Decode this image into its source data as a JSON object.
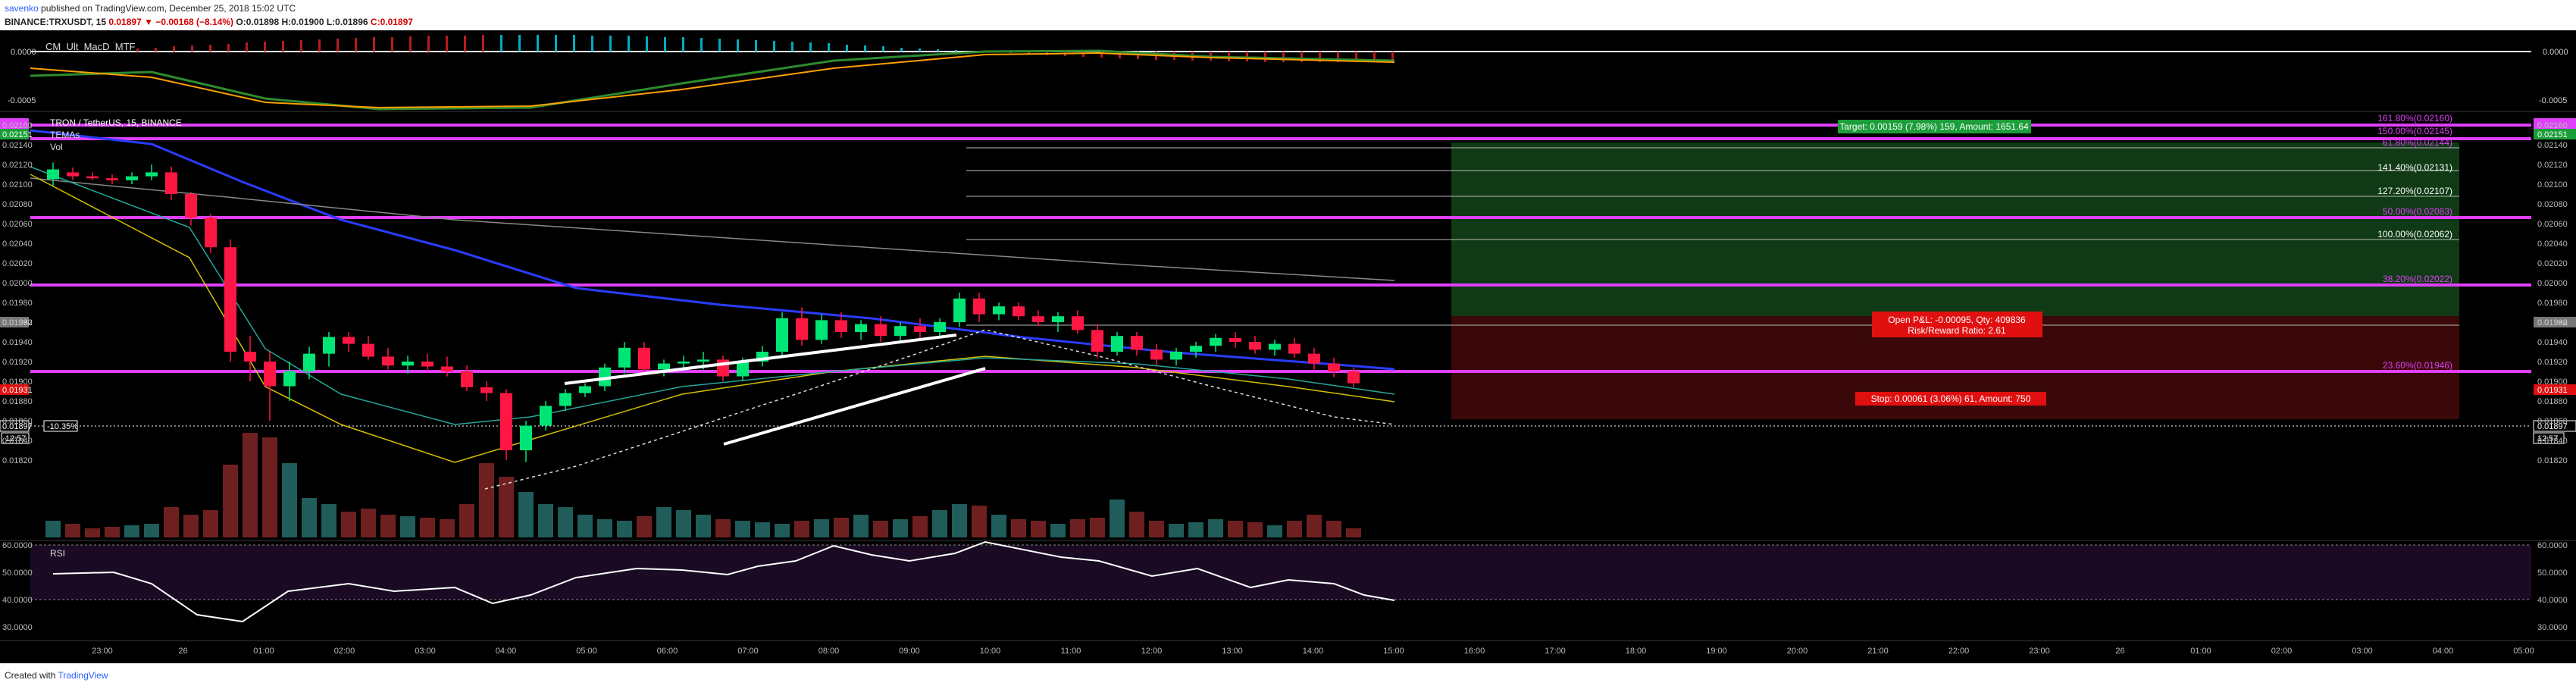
{
  "header": {
    "author": "savenko",
    "published": "published on TradingView.com, December 25, 2018 15:02 UTC",
    "symbol_line": "BINANCE:TRXUSDT, 15",
    "last": "0.01897",
    "change": "▼ −0.00168 (−8.14%)",
    "o": "O:0.01898",
    "h": "H:0.01900",
    "l": "L:0.01896",
    "c": "C:0.01897"
  },
  "macd_pane": {
    "title": "CM_Ult_MacD_MTF",
    "right_top": "0.0000",
    "right_bottom": "-0.0005",
    "left_top": "0.0000",
    "left_bottom": "-0.0005"
  },
  "main_pane": {
    "title": "TRON / TetherUS, 15, BINANCE",
    "indicators": [
      "TEMAs",
      "Vol"
    ],
    "badge_top": "0.02151",
    "badge_red": "0.01931",
    "badge_gray": "0.01992",
    "last_price_badge": "0.01897",
    "countdown": "12:57",
    "pct_badge": "-10.35%",
    "price_ticks": [
      "0.02160",
      "0.02140",
      "0.02120",
      "0.02100",
      "0.02080",
      "0.02060",
      "0.02040",
      "0.02020",
      "0.02000",
      "0.01980",
      "0.01960",
      "0.01940",
      "0.01920",
      "0.01900",
      "0.01880",
      "0.01860",
      "0.01840",
      "0.01820"
    ],
    "fib_levels": [
      {
        "label": "161.80%(0.02160)",
        "color": "#e040fb"
      },
      {
        "label": "150.00%(0.02145)",
        "color": "#e040fb"
      },
      {
        "label": "141.40%(0.02131)",
        "color": "#ffffff"
      },
      {
        "label": "127.20%(0.02107)",
        "color": "#ffffff"
      },
      {
        "label": "100.00%(0.02062)",
        "color": "#ffffff"
      },
      {
        "label": "61.80%(0.02144)",
        "color": "#e040fb"
      },
      {
        "label": "50.00%(0.02083)",
        "color": "#e040fb"
      },
      {
        "label": "38.20%(0.02022)",
        "color": "#e040fb"
      },
      {
        "label": "23.60%(0.01946)",
        "color": "#e040fb"
      }
    ],
    "target_label": "Target: 0.00159 (7.98%) 159, Amount: 1651.64",
    "open_pnl": "Open P&L: -0.00095, Qty: 409836",
    "rr": "Risk/Reward Ratio: 2.61",
    "stop_label": "Stop: 0.00061 (3.06%) 61, Amount: 750"
  },
  "rsi_pane": {
    "title": "RSI",
    "ticks": [
      "60.0000",
      "50.0000",
      "40.0000",
      "30.0000"
    ],
    "level": "40.0000"
  },
  "time_axis": [
    "23:00",
    "26",
    "01:00",
    "02:00",
    "03:00",
    "04:00",
    "05:00",
    "06:00",
    "07:00",
    "08:00",
    "09:00",
    "10:00",
    "11:00",
    "12:00",
    "13:00",
    "14:00",
    "15:00",
    "16:00",
    "17:00",
    "18:00",
    "19:00",
    "20:00",
    "21:00",
    "22:00",
    "23:00",
    "26",
    "01:00",
    "02:00",
    "03:00",
    "04:00",
    "05:00"
  ],
  "footer": {
    "created": "Created with",
    "brand": "TradingView"
  },
  "colors": {
    "up": "#00e676",
    "down": "#ff1744",
    "magenta": "#e040fb",
    "ema_blue": "#2a3cff",
    "ema_gray": "#a0a0a0"
  }
}
